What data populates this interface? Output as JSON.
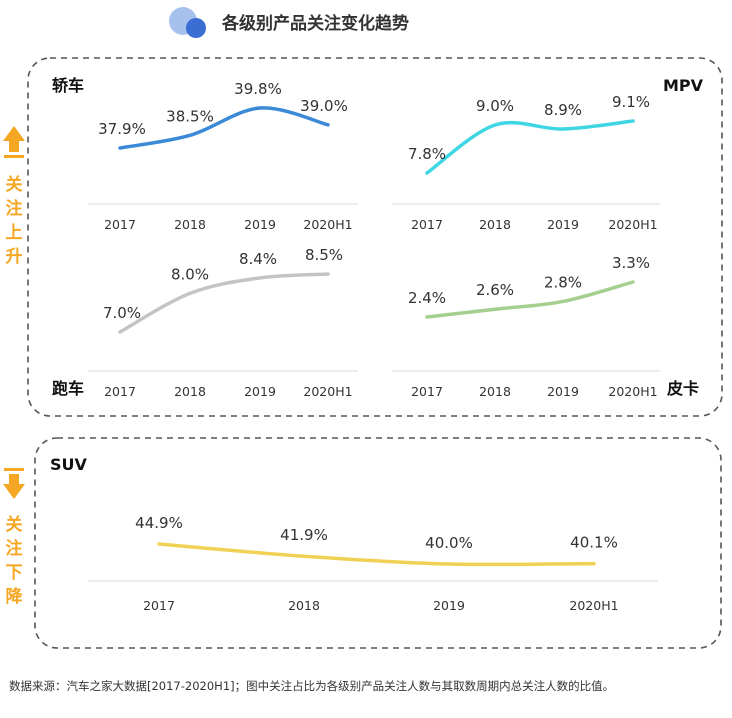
{
  "header": {
    "title": "各级别产品关注变化趋势"
  },
  "groups": {
    "up": {
      "label": "关注上升"
    },
    "down": {
      "label": "关注下降"
    }
  },
  "colors": {
    "accent": "#f5a623",
    "sedan": "#3a8ad8",
    "mpv": "#3fd6e4",
    "sports": "#c4c4c4",
    "pickup": "#a5cf8e",
    "suv": "#f0d156",
    "logo_light": "#a7c1ee",
    "logo_dark": "#3b6ed3"
  },
  "chart_data": [
    {
      "type": "line",
      "title": "轿车",
      "categories": [
        "2017",
        "2018",
        "2019",
        "2020H1"
      ],
      "values": [
        37.9,
        38.5,
        39.8,
        39.0
      ],
      "labels": [
        "37.9%",
        "38.5%",
        "39.8%",
        "39.0%"
      ]
    },
    {
      "type": "line",
      "title": "MPV",
      "categories": [
        "2017",
        "2018",
        "2019",
        "2020H1"
      ],
      "values": [
        7.8,
        9.0,
        8.9,
        9.1
      ],
      "labels": [
        "7.8%",
        "9.0%",
        "8.9%",
        "9.1%"
      ]
    },
    {
      "type": "line",
      "title": "跑车",
      "categories": [
        "2017",
        "2018",
        "2019",
        "2020H1"
      ],
      "values": [
        7.0,
        8.0,
        8.4,
        8.5
      ],
      "labels": [
        "7.0%",
        "8.0%",
        "8.4%",
        "8.5%"
      ]
    },
    {
      "type": "line",
      "title": "皮卡",
      "categories": [
        "2017",
        "2018",
        "2019",
        "2020H1"
      ],
      "values": [
        2.4,
        2.6,
        2.8,
        3.3
      ],
      "labels": [
        "2.4%",
        "2.6%",
        "2.8%",
        "3.3%"
      ]
    },
    {
      "type": "line",
      "title": "SUV",
      "categories": [
        "2017",
        "2018",
        "2019",
        "2020H1"
      ],
      "values": [
        44.9,
        41.9,
        40.0,
        40.1
      ],
      "labels": [
        "44.9%",
        "41.9%",
        "40.0%",
        "40.1%"
      ]
    }
  ],
  "footnote": "数据来源：汽车之家大数据[2017-2020H1]；图中关注占比为各级别产品关注人数与其取数周期内总关注人数的比值。"
}
